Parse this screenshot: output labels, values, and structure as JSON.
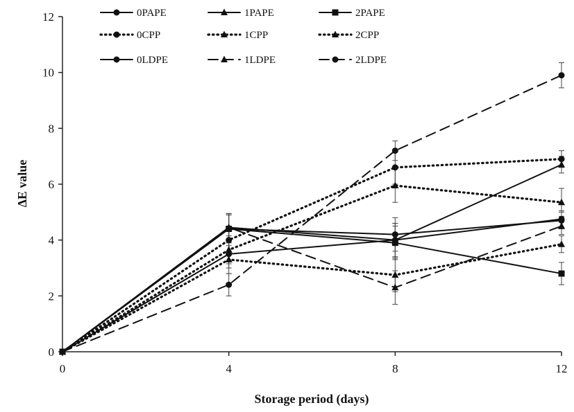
{
  "chart_data": {
    "type": "line",
    "title": "",
    "xlabel": "Storage period (days)",
    "ylabel": "ΔE value",
    "x": [
      0,
      4,
      8,
      12
    ],
    "x_ticks": [
      "0",
      "4",
      "8",
      "12"
    ],
    "y_ticks": [
      "0",
      "2",
      "4",
      "6",
      "8",
      "10",
      "12"
    ],
    "xlim": [
      0,
      12
    ],
    "ylim": [
      0,
      12
    ],
    "grid": false,
    "legend_position": "top",
    "series": [
      {
        "name": "0PAPE",
        "line": "solid",
        "marker": "circle",
        "values": [
          0,
          4.4,
          4.2,
          4.7
        ],
        "errors": [
          0,
          0.5,
          0.6,
          0.3
        ]
      },
      {
        "name": "1PAPE",
        "line": "solid",
        "marker": "triangle",
        "values": [
          0,
          4.45,
          4.0,
          6.7
        ],
        "errors": [
          0,
          0.5,
          0.6,
          0.3
        ]
      },
      {
        "name": "2PAPE",
        "line": "solid",
        "marker": "square",
        "values": [
          0,
          4.4,
          3.9,
          2.8
        ],
        "errors": [
          0,
          0.5,
          0.6,
          0.4
        ]
      },
      {
        "name": "0CPP",
        "line": "dotted",
        "marker": "circle",
        "values": [
          0,
          4.0,
          6.6,
          6.9
        ],
        "errors": [
          0,
          0.5,
          0.6,
          0.3
        ]
      },
      {
        "name": "1CPP",
        "line": "dotted",
        "marker": "triangle",
        "values": [
          0,
          3.3,
          2.75,
          3.85
        ],
        "errors": [
          0,
          0.5,
          0.6,
          0.3
        ]
      },
      {
        "name": "2CPP",
        "line": "dotted",
        "marker": "triangle",
        "values": [
          0,
          3.65,
          5.95,
          5.35
        ],
        "errors": [
          0,
          0.5,
          0.6,
          0.5
        ]
      },
      {
        "name": "0LDPE",
        "line": "solid",
        "marker": "circle",
        "values": [
          0,
          3.5,
          4.0,
          4.75
        ],
        "errors": [
          0,
          0.5,
          0.6,
          0.3
        ]
      },
      {
        "name": "1LDPE",
        "line": "dashed",
        "marker": "triangle",
        "values": [
          0,
          4.45,
          2.3,
          4.5
        ],
        "errors": [
          0,
          0.5,
          0.6,
          0.3
        ]
      },
      {
        "name": "2LDPE",
        "line": "dashed",
        "marker": "circle",
        "values": [
          0,
          2.4,
          7.2,
          9.9
        ],
        "errors": [
          0,
          0.4,
          0.35,
          0.45
        ]
      }
    ]
  }
}
